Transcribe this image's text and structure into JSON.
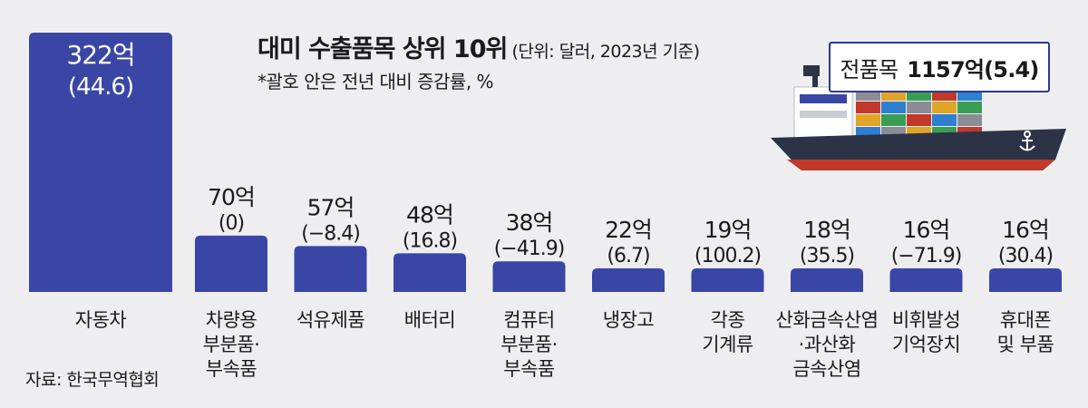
{
  "title": "대미 수출품목 상위 10위",
  "title_unit": "(단위: 달러, 2023년 기준)",
  "subtitle": "*괄호 안은 전년 대비 증감률, %",
  "source": "자료: 한국무역협회",
  "total": {
    "label": "전품목",
    "value": "1157억(5.4)"
  },
  "colors": {
    "bar": "#3a46a6",
    "background": "#eeeef1",
    "text": "#1a1a1a",
    "hull": "#2d3346",
    "hull_stripe": "#c0392b"
  },
  "icons": [
    "cargo-ship-icon",
    "anchor-icon"
  ],
  "chart_data": {
    "type": "bar",
    "categories": [
      "자동차",
      "차량용\n부분품·\n부속품",
      "석유제품",
      "배터리",
      "컴퓨터\n부분품·\n부속품",
      "냉장고",
      "각종\n기계류",
      "산화금속산염\n·과산화\n금속산염",
      "비휘발성\n기억장치",
      "휴대폰\n및 부품"
    ],
    "values": [
      322,
      70,
      57,
      48,
      38,
      22,
      19,
      18,
      16,
      16
    ],
    "value_labels": [
      "322억",
      "70억",
      "57억",
      "48억",
      "38억",
      "22억",
      "19억",
      "18억",
      "16억",
      "16억"
    ],
    "change_labels": [
      "(44.6)",
      "(0)",
      "(−8.4)",
      "(16.8)",
      "(−41.9)",
      "(6.7)",
      "(100.2)",
      "(35.5)",
      "(−71.9)",
      "(30.4)"
    ],
    "unit": "억 달러"
  }
}
